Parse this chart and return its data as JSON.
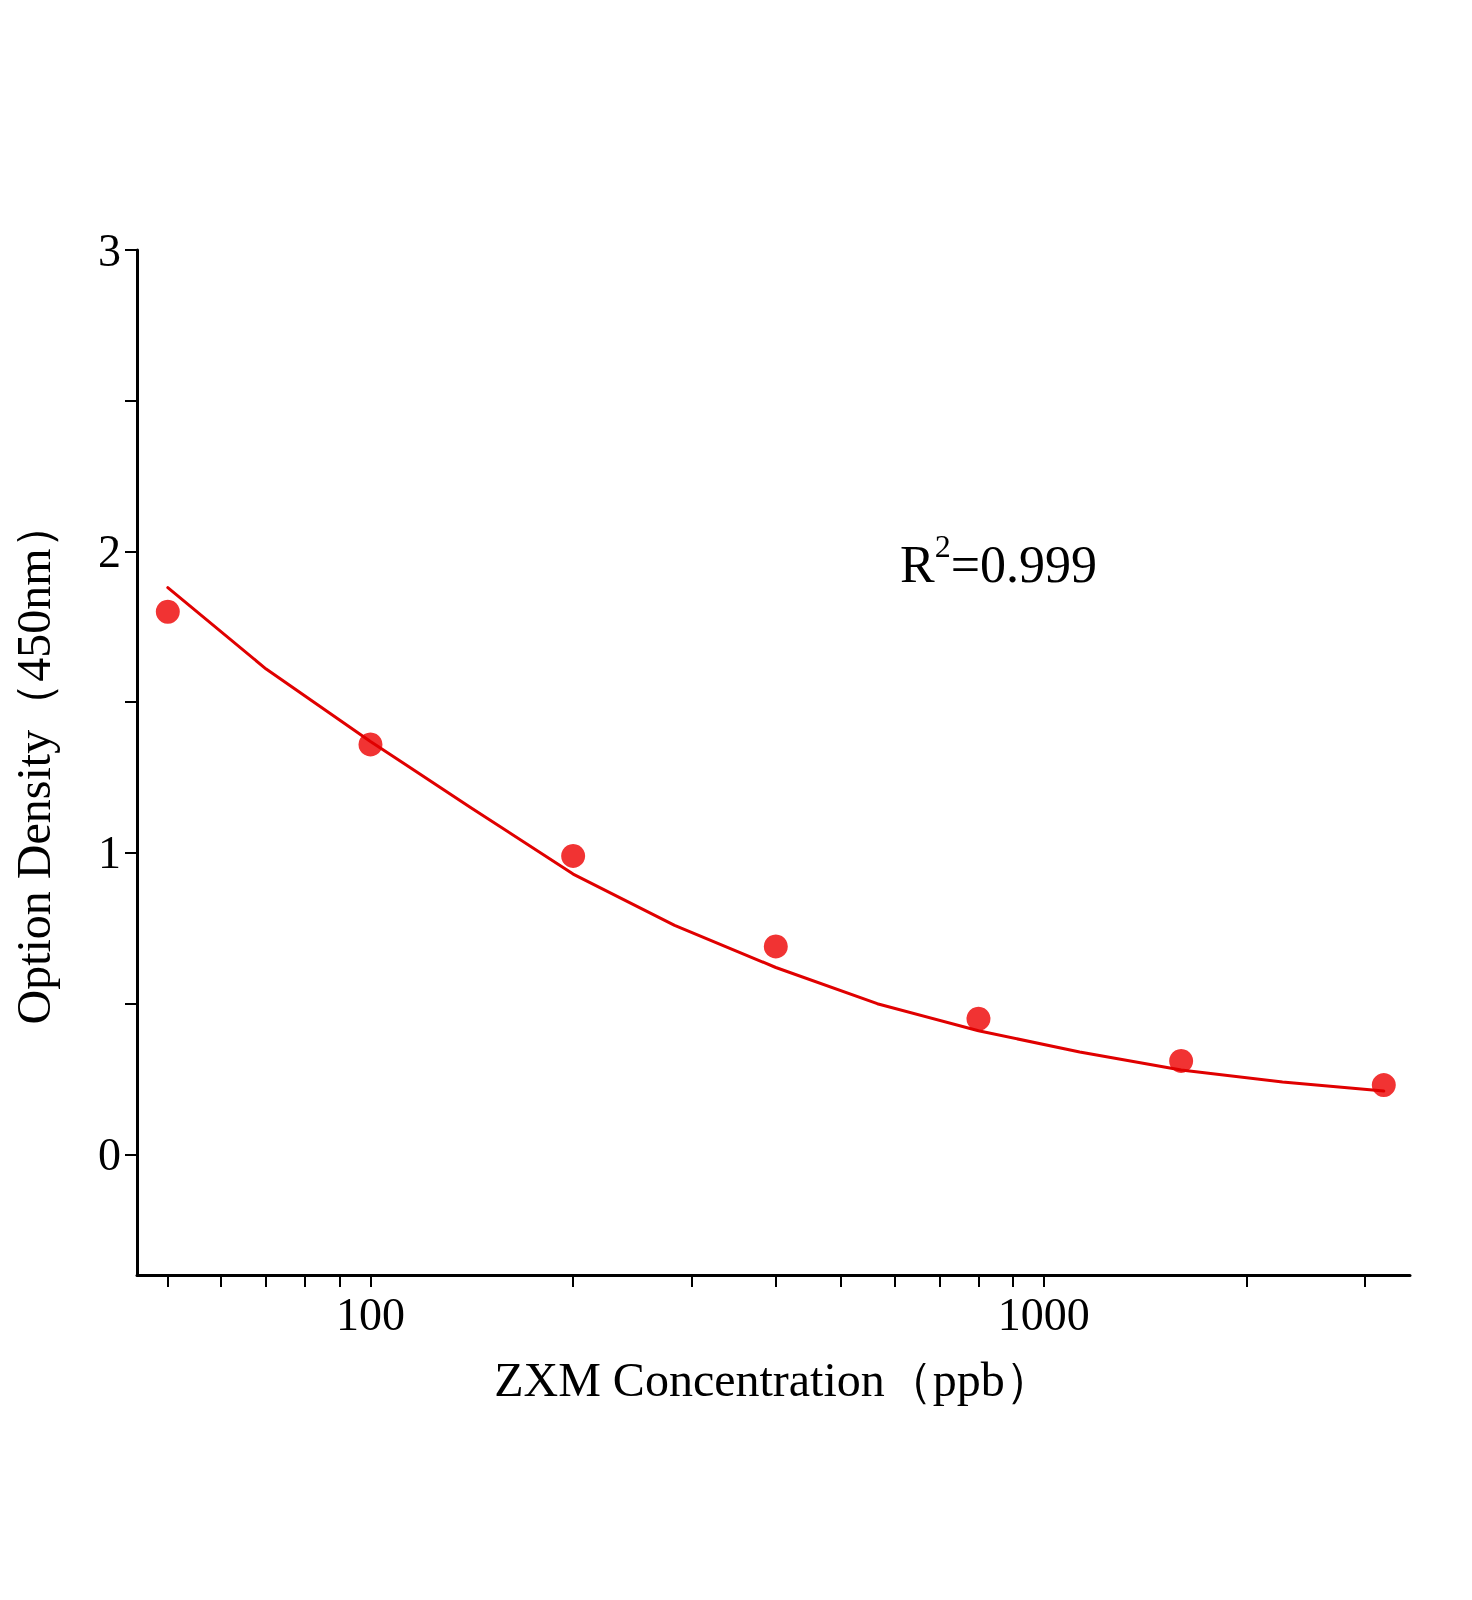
{
  "chart_data": {
    "type": "scatter",
    "xlabel": "ZXM Concentration（ppb）",
    "ylabel": "Option Density（450nm）",
    "annotations": [
      "R$^{2}$=0.999"
    ],
    "log": "x",
    "xlim": [
      45,
      3500
    ],
    "xticks": [
      {
        "value": 50,
        "label": null
      },
      {
        "value": 60,
        "label": null
      },
      {
        "value": 70,
        "label": null
      },
      {
        "value": 80,
        "label": null
      },
      {
        "value": 90,
        "label": null
      },
      100,
      {
        "value": 200,
        "label": null
      },
      {
        "value": 300,
        "label": null
      },
      {
        "value": 400,
        "label": null
      },
      {
        "value": 500,
        "label": null
      },
      {
        "value": 600,
        "label": null
      },
      {
        "value": 700,
        "label": null
      },
      {
        "value": 800,
        "label": null
      },
      {
        "value": 900,
        "label": null
      },
      1000,
      {
        "value": 2000,
        "label": null
      },
      {
        "value": 3000,
        "label": null
      }
    ],
    "ylim": [
      -0.4,
      3
    ],
    "yticks": [
      0,
      {
        "value": 0.5,
        "label": null
      },
      1,
      {
        "value": 1.5,
        "label": null
      },
      2,
      {
        "value": 2.5,
        "label": null
      },
      3
    ],
    "series": [
      {
        "marker": "circle",
        "color": "#ee0000",
        "x": [
          50,
          100,
          200,
          400,
          800,
          1600,
          3200
        ],
        "values": [
          1.8,
          1.36,
          0.99,
          0.69,
          0.45,
          0.31,
          0.23
        ]
      },
      {
        "type": "line",
        "marker": "none",
        "line_style": "solid",
        "color": "#e00000",
        "x": [
          50,
          70,
          100,
          141,
          200,
          283,
          400,
          566,
          800,
          1131,
          1600,
          2263,
          3200
        ],
        "values": [
          1.88,
          1.61,
          1.37,
          1.15,
          0.93,
          0.76,
          0.62,
          0.5,
          0.41,
          0.34,
          0.28,
          0.24,
          0.21
        ]
      }
    ]
  }
}
